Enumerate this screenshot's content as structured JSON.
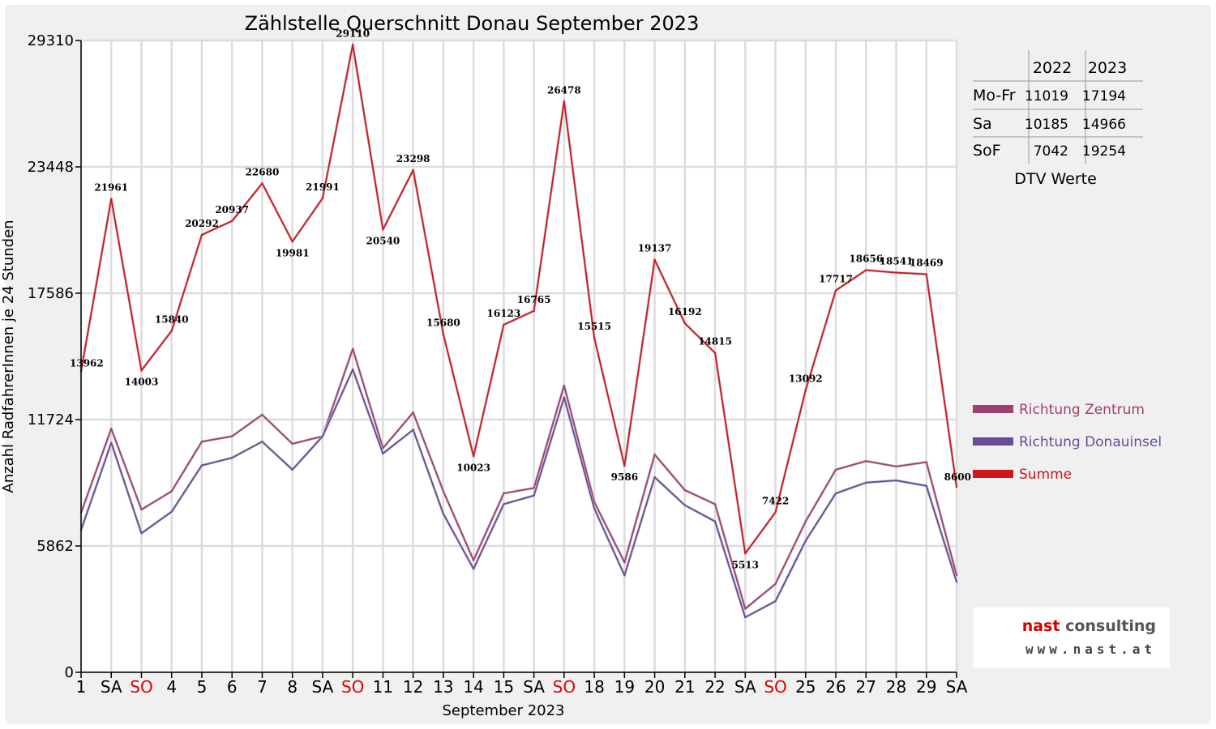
{
  "chart_data": {
    "type": "line",
    "title": "Zählstelle Querschnitt Donau September 2023",
    "xlabel": "September 2023",
    "ylabel": "Anzahl RadfahrerInnen je 24 Stunden",
    "ylim": [
      0,
      29310
    ],
    "yticks": [
      "0",
      "5862",
      "11724",
      "17586",
      "23448",
      "29310"
    ],
    "grid": true,
    "legend_position": "right",
    "categories": [
      "1",
      "SA",
      "SO",
      "4",
      "5",
      "6",
      "7",
      "8",
      "SA",
      "SO",
      "11",
      "12",
      "13",
      "14",
      "15",
      "SA",
      "SO",
      "18",
      "19",
      "20",
      "21",
      "22",
      "SA",
      "SO",
      "25",
      "26",
      "27",
      "28",
      "29",
      "SA"
    ],
    "category_colors": [
      "#000000",
      "#000000",
      "#e00000",
      "#000000",
      "#000000",
      "#000000",
      "#000000",
      "#000000",
      "#000000",
      "#e00000",
      "#000000",
      "#000000",
      "#000000",
      "#000000",
      "#000000",
      "#000000",
      "#e00000",
      "#000000",
      "#000000",
      "#000000",
      "#000000",
      "#000000",
      "#000000",
      "#e00000",
      "#000000",
      "#000000",
      "#000000",
      "#000000",
      "#000000",
      "#000000"
    ],
    "series": [
      {
        "name": "Richtung Zentrum",
        "color": "#a04070",
        "values": [
          7400,
          11300,
          7550,
          8400,
          10700,
          10950,
          11950,
          10600,
          10950,
          15000,
          10400,
          12050,
          8400,
          5200,
          8300,
          8550,
          13300,
          7900,
          5100,
          10100,
          8450,
          7800,
          2950,
          4100,
          7000,
          9400,
          9800,
          9550,
          9750,
          4500
        ]
      },
      {
        "name": "Richtung Donauinsel",
        "color": "#6a4a9a",
        "values": [
          6600,
          10650,
          6450,
          7450,
          9600,
          9950,
          10700,
          9400,
          10950,
          14050,
          10150,
          11250,
          7350,
          4800,
          7800,
          8200,
          12750,
          7600,
          4500,
          9050,
          7750,
          7000,
          2550,
          3300,
          6100,
          8300,
          8800,
          8900,
          8650,
          4200
        ]
      },
      {
        "name": "Summe",
        "color": "#d0161f",
        "values": [
          13962,
          21961,
          14003,
          15840,
          20292,
          20937,
          22680,
          19981,
          21991,
          29110,
          20540,
          23298,
          15680,
          10023,
          16123,
          16765,
          26478,
          15515,
          9586,
          19137,
          16192,
          14815,
          5513,
          7422,
          13092,
          17717,
          18656,
          18541,
          18469,
          8600
        ],
        "labels": [
          "13962",
          "21961",
          "14003",
          "15840",
          "20292",
          "20937",
          "22680",
          "19981",
          "21991",
          "29110",
          "20540",
          "23298",
          "15680",
          "10023",
          "16123",
          "16765",
          "26478",
          "15515",
          "9586",
          "19137",
          "16192",
          "14815",
          "5513",
          "7422",
          "13092",
          "17717",
          "18656",
          "18541",
          "18469",
          "8600"
        ]
      }
    ]
  },
  "dtv_table": {
    "columns": [
      "",
      "2022",
      "2023"
    ],
    "rows": [
      {
        "label": "Mo-Fr",
        "v2022": "11019",
        "v2023": "17194"
      },
      {
        "label": "Sa",
        "v2022": "10185",
        "v2023": "14966"
      },
      {
        "label": "SoF",
        "v2022": "7042",
        "v2023": "19254"
      }
    ],
    "caption": "DTV Werte"
  },
  "logo": {
    "name_main": "nast",
    "name_tail": "consulting",
    "url": "www.nast.at"
  }
}
